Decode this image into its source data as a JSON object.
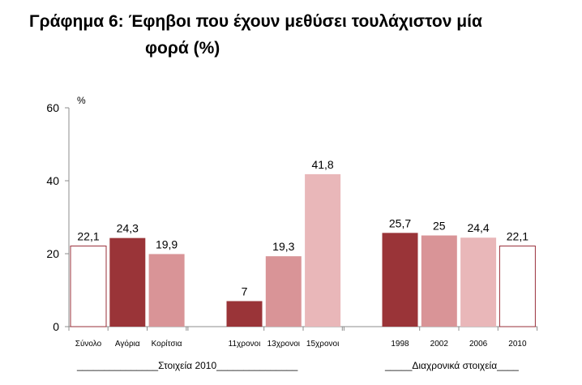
{
  "title": {
    "line1": "Γράφημα 6:  Έφηβοι που έχουν μεθύσει τουλάχιστον μία",
    "line2": "φορά (%)"
  },
  "colors": {
    "outline_bar": "#9a2f3a",
    "dark": "#9a3438",
    "medium": "#d99497",
    "light": "#e9b7b9",
    "axis": "#8c8c8c"
  },
  "chart_data": {
    "type": "bar",
    "ylabel": "%",
    "ylim": [
      0,
      60
    ],
    "yticks": [
      0,
      20,
      40,
      60
    ],
    "grid": false,
    "categories": [
      "Σύνολο",
      "Αγόρια",
      "Κορίτσια",
      "11χρονοι",
      "13χρονοι",
      "15χρονοι",
      "1998",
      "2002",
      "2006",
      "2010"
    ],
    "values": [
      22.1,
      24.3,
      19.9,
      7,
      19.3,
      41.8,
      25.7,
      25,
      24.4,
      22.1
    ],
    "value_labels": [
      "22,1",
      "24,3",
      "19,9",
      "7",
      "19,3",
      "41,8",
      "25,7",
      "25",
      "24,4",
      "22,1"
    ],
    "styles": [
      "outline",
      "dark",
      "medium",
      "dark",
      "medium",
      "light",
      "dark",
      "medium",
      "light",
      "outline"
    ],
    "groups": [
      {
        "label": "_______________Στοιχεία 2010_______________",
        "from": 0,
        "to": 5
      },
      {
        "label": "_____Διαχρονικά στοιχεία____",
        "from": 6,
        "to": 9
      }
    ]
  }
}
